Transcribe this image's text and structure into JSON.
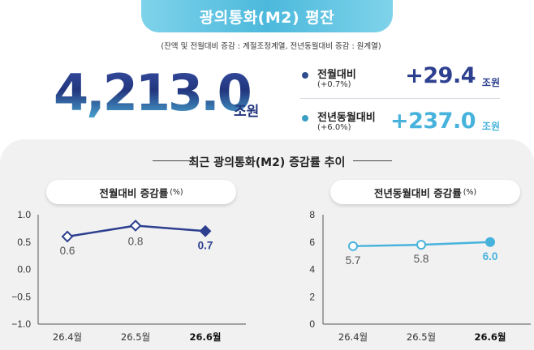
{
  "header": {
    "title": "광의통화(M2) 평잔",
    "note": "(잔액 및 전월대비 증감 : 계절조정계열, 전년동월대비 증감 : 원계열)"
  },
  "summary": {
    "value": "4,213.0",
    "unit": "조원",
    "metrics": [
      {
        "label": "전월대비",
        "sub": "(+0.7%)",
        "value": "+29.4",
        "unit": "조원"
      },
      {
        "label": "전년동월대비",
        "sub": "(+6.0%)",
        "value": "+237.0",
        "unit": "조원"
      }
    ]
  },
  "section": {
    "title": "최근 광의통화(M2) 증감률 추이"
  },
  "colors": {
    "navy": "#2d3f8f",
    "sky": "#47b3dc",
    "panel": "#f1f1f1"
  },
  "chart_data": [
    {
      "type": "line",
      "title": "전월대비 증감률",
      "title_unit": "(%)",
      "categories": [
        "26.4월",
        "26.5월",
        "26.6월"
      ],
      "values": [
        0.6,
        0.8,
        0.7
      ],
      "value_labels": [
        "0.6",
        "0.8",
        "0.7"
      ],
      "ylim": [
        -1.0,
        1.0
      ],
      "yticks": [
        1.0,
        0.5,
        0.0,
        -0.5,
        -1.0
      ],
      "ytick_labels": [
        "1.0",
        "0.5",
        "0.0",
        "−0.5",
        "−1.0"
      ],
      "color": "#2d3f8f",
      "marker": "diamond",
      "grid": false
    },
    {
      "type": "line",
      "title": "전년동월대비 증감률",
      "title_unit": "(%)",
      "categories": [
        "26.4월",
        "26.5월",
        "26.6월"
      ],
      "values": [
        5.7,
        5.8,
        6.0
      ],
      "value_labels": [
        "5.7",
        "5.8",
        "6.0"
      ],
      "ylim": [
        0,
        8
      ],
      "yticks": [
        8,
        6,
        4,
        2,
        0
      ],
      "ytick_labels": [
        "8",
        "6",
        "4",
        "2",
        "0"
      ],
      "color": "#47b3dc",
      "marker": "circle",
      "grid": false
    }
  ]
}
